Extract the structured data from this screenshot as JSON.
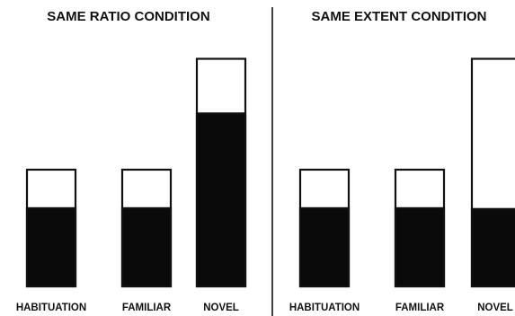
{
  "panels": [
    {
      "title": "SAME RATIO CONDITION",
      "bars": [
        {
          "label": "HABITUATION",
          "total": 1.0,
          "filled_fraction": 0.67
        },
        {
          "label": "FAMILIAR",
          "total": 1.0,
          "filled_fraction": 0.67
        },
        {
          "label": "NOVEL",
          "total": 1.95,
          "filled_fraction": 0.76
        }
      ]
    },
    {
      "title": "SAME EXTENT CONDITION",
      "bars": [
        {
          "label": "HABITUATION",
          "total": 1.0,
          "filled_fraction": 0.67
        },
        {
          "label": "FAMILIAR",
          "total": 1.0,
          "filled_fraction": 0.67
        },
        {
          "label": "NOVEL",
          "total": 1.95,
          "filled_fraction": 0.34
        }
      ]
    }
  ],
  "colors": {
    "fill": "#0a0a0a",
    "outline": "#111111",
    "empty": "#ffffff",
    "divider": "#111111"
  }
}
